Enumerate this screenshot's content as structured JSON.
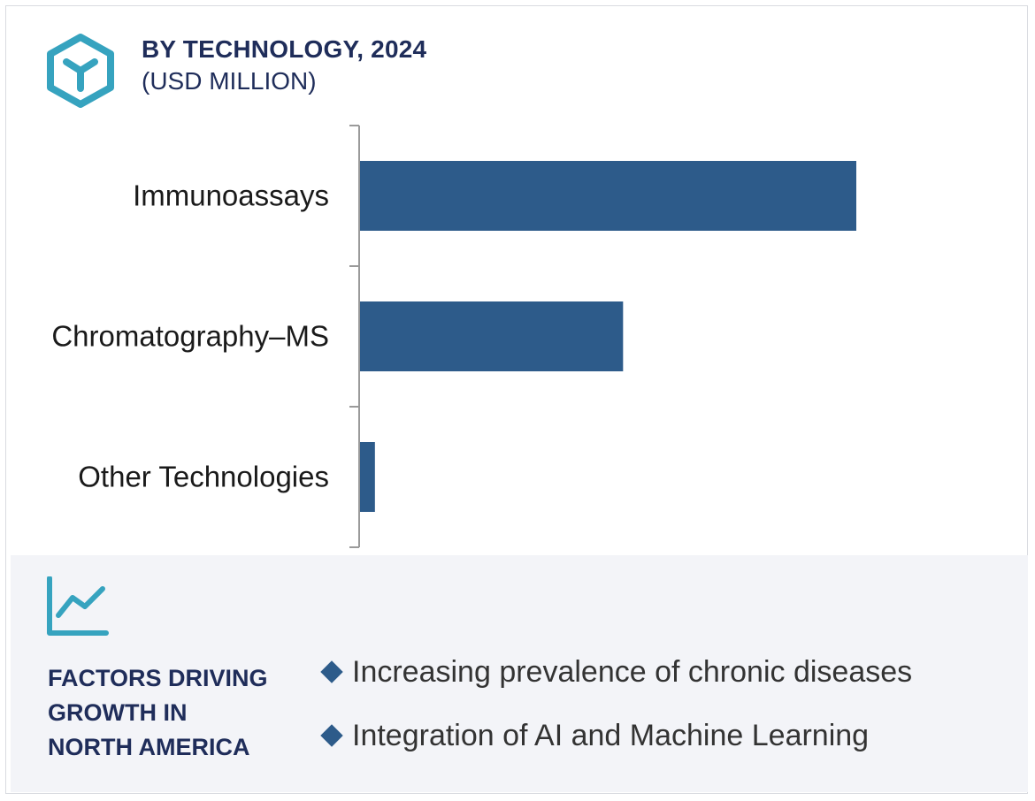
{
  "colors": {
    "bar": "#2d5b8a",
    "accent_icon": "#36a3bf",
    "heading": "#1f2d5a",
    "panel_background": "#f3f4f8",
    "axis": "#9a9a9a"
  },
  "header": {
    "icon": "hexagon-y-logo-icon",
    "title": "BY TECHNOLOGY, 2024",
    "subtitle": "(USD MILLION)"
  },
  "chart_data": {
    "type": "bar",
    "orientation": "horizontal",
    "title": "BY TECHNOLOGY, 2024",
    "subtitle": "(USD MILLION)",
    "categories": [
      "Immunoassays",
      "Chromatography–MS",
      "Other Technologies"
    ],
    "values": [
      100,
      53,
      3
    ],
    "xlim": [
      0,
      100
    ],
    "value_axis_labels_shown": false,
    "grid": false,
    "legend": "none"
  },
  "factors": {
    "icon": "line-chart-trend-icon",
    "heading_lines": [
      "FACTORS DRIVING",
      "GROWTH IN",
      "NORTH AMERICA"
    ],
    "items": [
      "Increasing prevalence of chronic diseases",
      "Integration of AI and Machine Learning"
    ]
  }
}
